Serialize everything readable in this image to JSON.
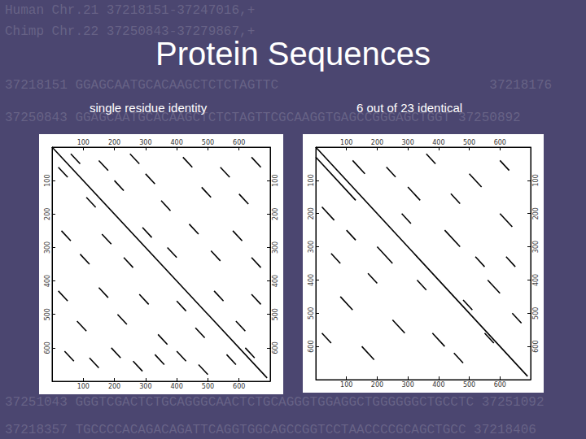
{
  "slide": {
    "title": "Protein Sequences",
    "background_lines": [
      "Human Chr.21 37218151-37247016,+",
      "Chimp Chr.22 37250843-37279867,+",
      "37218151 GGAGCAATGCACAAGCTCTCTAGTTC                           37218176",
      "37250843 GGAGCAATGCACAAGCTCTCTAGTTCGCAAGGTGAGCCGGGAGCTGGT 37250892",
      "37251043 GGGTCGACTCTGCAGGGCAACTCTGCAGGGTGGAGGCTGGGGGGCTGCCTC 37251092",
      "37218357 TGCCCCACAGACAGATTCAGGTGGCAGCCGGTCCTAACCCCGCAGCTGCC 37218406"
    ]
  },
  "chart_data": [
    {
      "type": "dotplot",
      "title": "single residue identity",
      "color": "#000000",
      "xlim": [
        0,
        700
      ],
      "ylim": [
        0,
        700
      ],
      "xticks": [
        100,
        200,
        300,
        400,
        500,
        600
      ],
      "yticks": [
        100,
        200,
        300,
        400,
        500,
        600
      ],
      "segments": [
        [
          0,
          0,
          690,
          690
        ],
        [
          20,
          60,
          50,
          90
        ],
        [
          60,
          20,
          90,
          50
        ],
        [
          110,
          150,
          140,
          180
        ],
        [
          150,
          40,
          180,
          70
        ],
        [
          200,
          100,
          230,
          130
        ],
        [
          250,
          20,
          280,
          50
        ],
        [
          300,
          80,
          330,
          110
        ],
        [
          350,
          160,
          380,
          190
        ],
        [
          420,
          30,
          450,
          60
        ],
        [
          480,
          120,
          510,
          150
        ],
        [
          540,
          60,
          570,
          90
        ],
        [
          600,
          140,
          630,
          170
        ],
        [
          640,
          30,
          670,
          60
        ],
        [
          30,
          250,
          60,
          280
        ],
        [
          90,
          320,
          120,
          350
        ],
        [
          160,
          260,
          190,
          290
        ],
        [
          230,
          330,
          260,
          360
        ],
        [
          290,
          240,
          320,
          270
        ],
        [
          370,
          300,
          400,
          330
        ],
        [
          440,
          230,
          470,
          260
        ],
        [
          510,
          310,
          540,
          340
        ],
        [
          580,
          250,
          610,
          280
        ],
        [
          640,
          330,
          670,
          360
        ],
        [
          20,
          430,
          50,
          460
        ],
        [
          80,
          520,
          110,
          550
        ],
        [
          150,
          420,
          180,
          450
        ],
        [
          210,
          500,
          240,
          530
        ],
        [
          280,
          440,
          310,
          470
        ],
        [
          340,
          560,
          370,
          590
        ],
        [
          400,
          460,
          430,
          490
        ],
        [
          460,
          540,
          490,
          570
        ],
        [
          520,
          430,
          550,
          460
        ],
        [
          590,
          520,
          620,
          550
        ],
        [
          640,
          440,
          670,
          470
        ],
        [
          40,
          610,
          70,
          640
        ],
        [
          120,
          630,
          150,
          660
        ],
        [
          190,
          600,
          220,
          630
        ],
        [
          260,
          640,
          290,
          670
        ],
        [
          330,
          620,
          360,
          650
        ],
        [
          400,
          610,
          430,
          640
        ],
        [
          470,
          650,
          500,
          680
        ],
        [
          560,
          620,
          590,
          650
        ],
        [
          620,
          600,
          650,
          630
        ]
      ]
    },
    {
      "type": "dotplot",
      "title": "6 out of 23 identical",
      "color": "#000000",
      "xlim": [
        0,
        700
      ],
      "ylim": [
        0,
        700
      ],
      "xticks": [
        100,
        200,
        300,
        400,
        500,
        600
      ],
      "yticks": [
        100,
        200,
        300,
        400,
        500,
        600
      ],
      "segments": [
        [
          0,
          0,
          690,
          690
        ],
        [
          0,
          30,
          130,
          160
        ],
        [
          20,
          180,
          60,
          220
        ],
        [
          120,
          40,
          160,
          80
        ],
        [
          200,
          300,
          250,
          350
        ],
        [
          300,
          120,
          340,
          160
        ],
        [
          420,
          250,
          470,
          300
        ],
        [
          500,
          80,
          540,
          120
        ],
        [
          560,
          400,
          600,
          440
        ],
        [
          80,
          450,
          120,
          490
        ],
        [
          250,
          520,
          290,
          560
        ],
        [
          380,
          560,
          420,
          600
        ],
        [
          600,
          200,
          640,
          240
        ],
        [
          150,
          600,
          190,
          640
        ],
        [
          450,
          620,
          480,
          650
        ],
        [
          330,
          400,
          360,
          430
        ],
        [
          50,
          320,
          80,
          350
        ],
        [
          640,
          500,
          670,
          530
        ],
        [
          230,
          60,
          260,
          90
        ],
        [
          520,
          330,
          550,
          360
        ],
        [
          100,
          250,
          130,
          280
        ],
        [
          280,
          200,
          310,
          230
        ],
        [
          360,
          20,
          390,
          50
        ],
        [
          440,
          140,
          470,
          170
        ],
        [
          600,
          40,
          630,
          70
        ],
        [
          170,
          380,
          200,
          410
        ],
        [
          480,
          460,
          510,
          490
        ],
        [
          20,
          560,
          50,
          590
        ],
        [
          550,
          560,
          580,
          590
        ],
        [
          620,
          330,
          650,
          360
        ]
      ]
    }
  ]
}
